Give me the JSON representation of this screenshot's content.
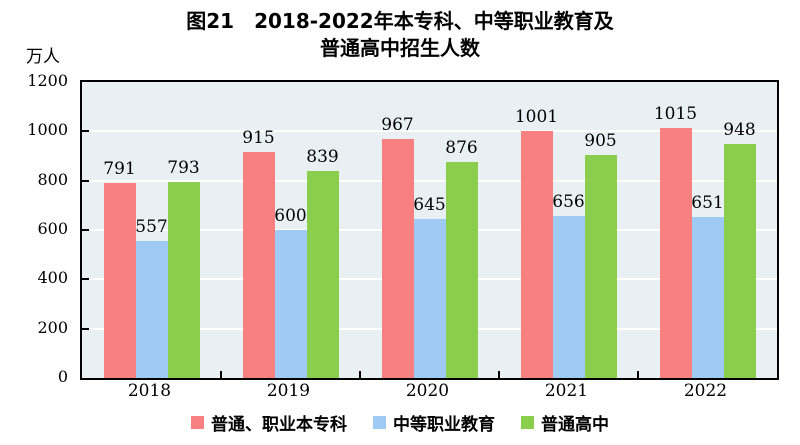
{
  "title_lines": [
    "图21　2018-2022年本专科、中等职业教育及",
    "普通高中招生人数"
  ],
  "chart_data": {
    "type": "bar",
    "title": "图21 2018-2022年本专科、中等职业教育及普通高中招生人数",
    "ylabel": "万人",
    "xlabel": "",
    "ylim": [
      0,
      1200
    ],
    "yticks": [
      0,
      200,
      400,
      600,
      800,
      1000,
      1200
    ],
    "grid": true,
    "legend_position": "bottom",
    "categories": [
      "2018",
      "2019",
      "2020",
      "2021",
      "2022"
    ],
    "series": [
      {
        "name": "普通、职业本专科",
        "color": "#f98080",
        "values": [
          791,
          915,
          967,
          1001,
          1015
        ]
      },
      {
        "name": "中等职业教育",
        "color": "#9ecaf4",
        "values": [
          557,
          600,
          645,
          656,
          651
        ]
      },
      {
        "name": "普通高中",
        "color": "#8bce4d",
        "values": [
          793,
          839,
          876,
          905,
          948
        ]
      }
    ]
  },
  "colors": {
    "plot_background": "#e9f0f3",
    "gridline": "#ffffff",
    "axis": "#000000"
  }
}
